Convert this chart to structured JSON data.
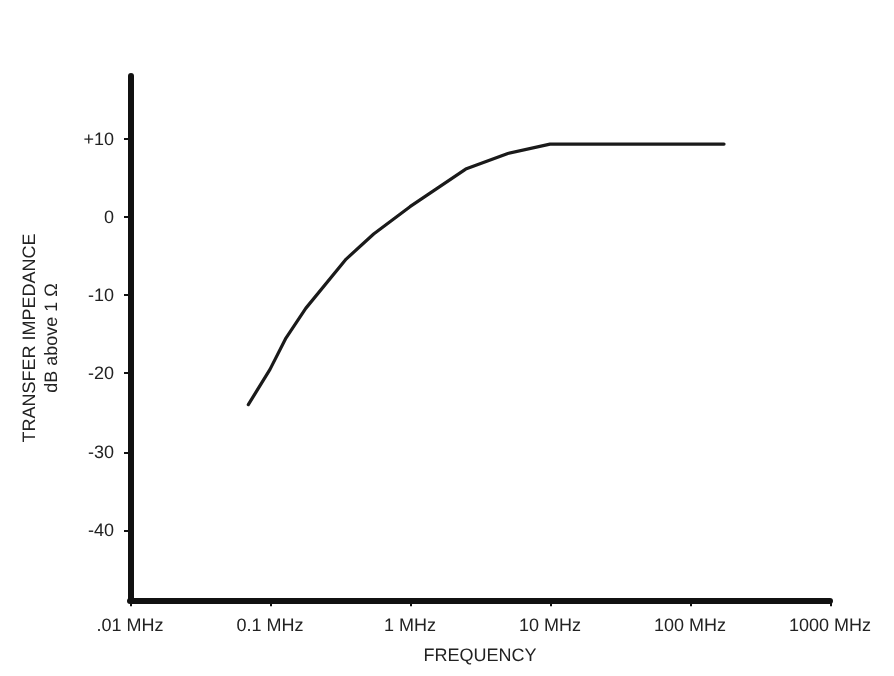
{
  "chart_data": {
    "type": "line",
    "xlabel": "FREQUENCY",
    "ylabel": "TRANSFER IMPEDANCE\ndB above 1 Ω",
    "log": "x",
    "grid": false,
    "marker": "none",
    "line_style": "solid",
    "xlim": [
      0.01,
      1000
    ],
    "xticks": [
      {
        "value": 0.01,
        "label": ".01 MHz"
      },
      {
        "value": 0.1,
        "label": "0.1 MHz"
      },
      {
        "value": 1,
        "label": "1 MHz"
      },
      {
        "value": 10,
        "label": "10 MHz"
      },
      {
        "value": 100,
        "label": "100 MHz"
      },
      {
        "value": 1000,
        "label": "1000 MHz"
      }
    ],
    "ylim": [
      -49,
      18
    ],
    "yticks": [
      {
        "value": 10,
        "label": "+10"
      },
      0,
      -10,
      -20,
      -30,
      -40
    ],
    "series": [
      {
        "color": "#1a1a1a",
        "x": [
          0.07,
          0.1,
          0.13,
          0.18,
          0.35,
          0.55,
          1,
          2.5,
          5,
          10,
          175
        ],
        "values": [
          -24,
          -19.5,
          -15.5,
          -11.7,
          -5.4,
          -2.2,
          1.3,
          6.1,
          8.1,
          9.3,
          9.3
        ]
      }
    ]
  }
}
